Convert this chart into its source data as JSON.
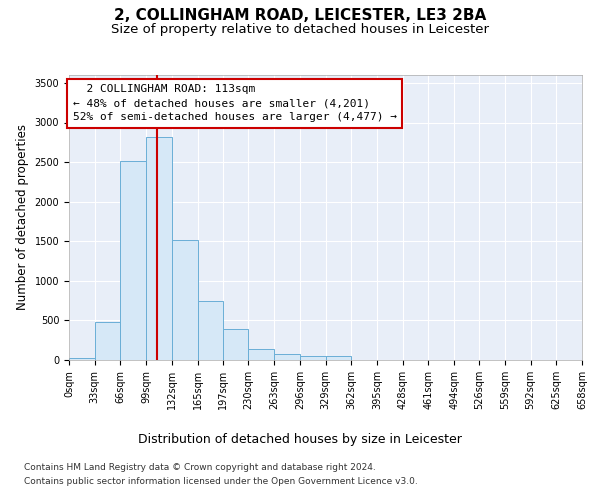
{
  "title": "2, COLLINGHAM ROAD, LEICESTER, LE3 2BA",
  "subtitle": "Size of property relative to detached houses in Leicester",
  "xlabel": "Distribution of detached houses by size in Leicester",
  "ylabel": "Number of detached properties",
  "footer_line1": "Contains HM Land Registry data © Crown copyright and database right 2024.",
  "footer_line2": "Contains public sector information licensed under the Open Government Licence v3.0.",
  "bin_edges": [
    0,
    33,
    66,
    99,
    132,
    165,
    197,
    230,
    263,
    296,
    329,
    362,
    395,
    428,
    461,
    494,
    526,
    559,
    592,
    625,
    658
  ],
  "bin_labels": [
    "0sqm",
    "33sqm",
    "66sqm",
    "99sqm",
    "132sqm",
    "165sqm",
    "197sqm",
    "230sqm",
    "263sqm",
    "296sqm",
    "329sqm",
    "362sqm",
    "395sqm",
    "428sqm",
    "461sqm",
    "494sqm",
    "526sqm",
    "559sqm",
    "592sqm",
    "625sqm",
    "658sqm"
  ],
  "bar_values": [
    25,
    480,
    2510,
    2820,
    1520,
    750,
    390,
    145,
    75,
    50,
    50,
    0,
    0,
    0,
    0,
    0,
    0,
    0,
    0,
    0
  ],
  "bar_facecolor": "#d6e8f7",
  "bar_edgecolor": "#6aaed6",
  "property_size": 113,
  "property_label": "2 COLLINGHAM ROAD: 113sqm",
  "pct_smaller": 48,
  "n_smaller": 4201,
  "pct_larger": 52,
  "n_larger": 4477,
  "vline_color": "#cc0000",
  "annotation_box_color": "#cc0000",
  "ylim": [
    0,
    3600
  ],
  "yticks": [
    0,
    500,
    1000,
    1500,
    2000,
    2500,
    3000,
    3500
  ],
  "axes_background": "#e8eef8",
  "grid_color": "#ffffff",
  "title_fontsize": 11,
  "subtitle_fontsize": 9.5,
  "tick_fontsize": 7,
  "ylabel_fontsize": 8.5,
  "xlabel_fontsize": 9,
  "footer_fontsize": 6.5,
  "annotation_fontsize": 8
}
